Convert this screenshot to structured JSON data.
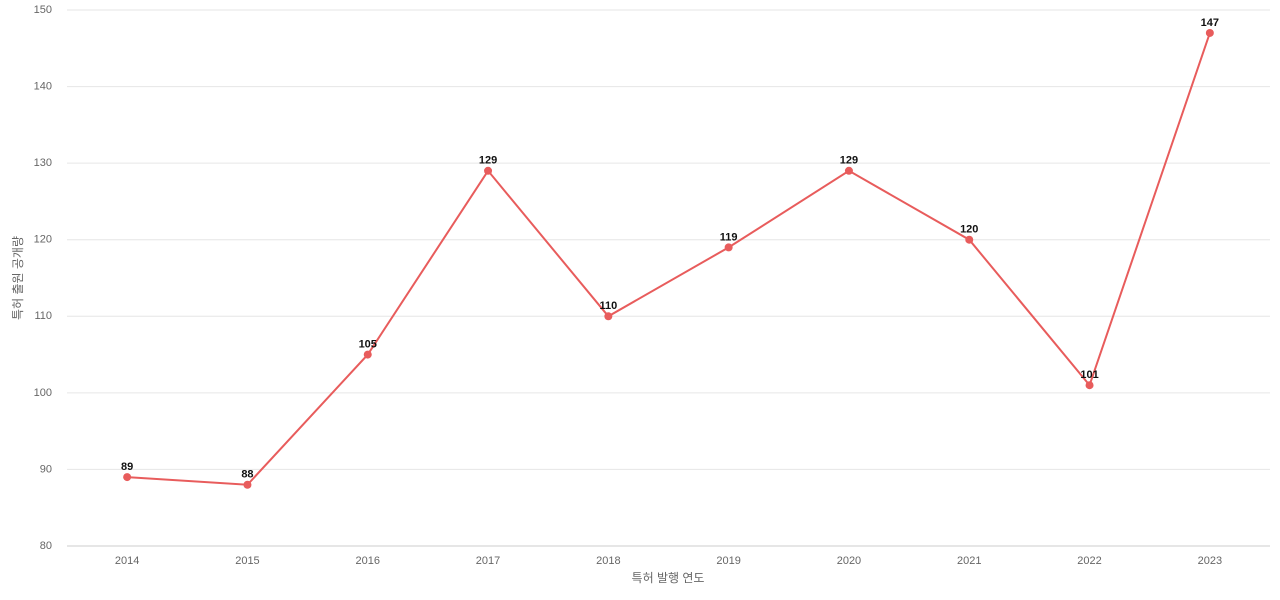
{
  "chart_data": {
    "type": "line",
    "x_label": "특허 발행 연도",
    "y_label": "특허 출원 공개량",
    "categories": [
      "2014",
      "2015",
      "2016",
      "2017",
      "2018",
      "2019",
      "2020",
      "2021",
      "2022",
      "2023"
    ],
    "series": [
      {
        "name": "특허 출원 공개량",
        "color": "#e85c5c",
        "values": [
          89,
          88,
          105,
          129,
          110,
          119,
          129,
          120,
          101,
          147
        ]
      }
    ],
    "ylim": [
      80,
      150
    ],
    "yticks": [
      80,
      90,
      100,
      110,
      120,
      130,
      140,
      150
    ],
    "grid": true,
    "data_labels": true
  }
}
